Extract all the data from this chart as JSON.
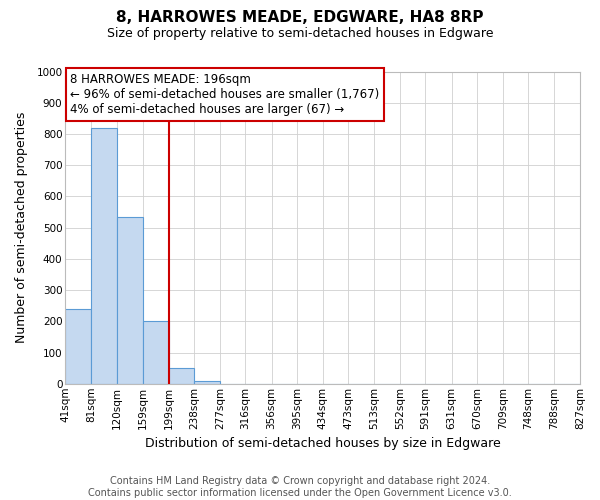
{
  "title": "8, HARROWES MEADE, EDGWARE, HA8 8RP",
  "subtitle": "Size of property relative to semi-detached houses in Edgware",
  "xlabel": "Distribution of semi-detached houses by size in Edgware",
  "ylabel": "Number of semi-detached properties",
  "bin_edges": [
    41,
    81,
    120,
    159,
    199,
    238,
    277,
    316,
    356,
    395,
    434,
    473,
    513,
    552,
    591,
    631,
    670,
    709,
    748,
    788,
    827
  ],
  "bar_heights": [
    240,
    820,
    535,
    200,
    50,
    10,
    0,
    0,
    0,
    0,
    0,
    0,
    0,
    0,
    0,
    0,
    0,
    0,
    0,
    0
  ],
  "bar_color": "#c5d9f0",
  "bar_edge_color": "#5b9bd5",
  "property_line_x": 199,
  "property_line_color": "#cc0000",
  "annotation_line1": "8 HARROWES MEADE: 196sqm",
  "annotation_line2": "← 96% of semi-detached houses are smaller (1,767)",
  "annotation_line3": "4% of semi-detached houses are larger (67) →",
  "annotation_box_color": "#ffffff",
  "annotation_box_edge_color": "#cc0000",
  "ylim": [
    0,
    1000
  ],
  "xlim": [
    41,
    827
  ],
  "tick_labels": [
    "41sqm",
    "81sqm",
    "120sqm",
    "159sqm",
    "199sqm",
    "238sqm",
    "277sqm",
    "316sqm",
    "356sqm",
    "395sqm",
    "434sqm",
    "473sqm",
    "513sqm",
    "552sqm",
    "591sqm",
    "631sqm",
    "670sqm",
    "709sqm",
    "748sqm",
    "788sqm",
    "827sqm"
  ],
  "footer_line1": "Contains HM Land Registry data © Crown copyright and database right 2024.",
  "footer_line2": "Contains public sector information licensed under the Open Government Licence v3.0.",
  "background_color": "#ffffff",
  "grid_color": "#d0d0d0",
  "title_fontsize": 11,
  "subtitle_fontsize": 9,
  "axis_label_fontsize": 9,
  "tick_fontsize": 7.5,
  "footer_fontsize": 7,
  "annotation_fontsize": 8.5
}
